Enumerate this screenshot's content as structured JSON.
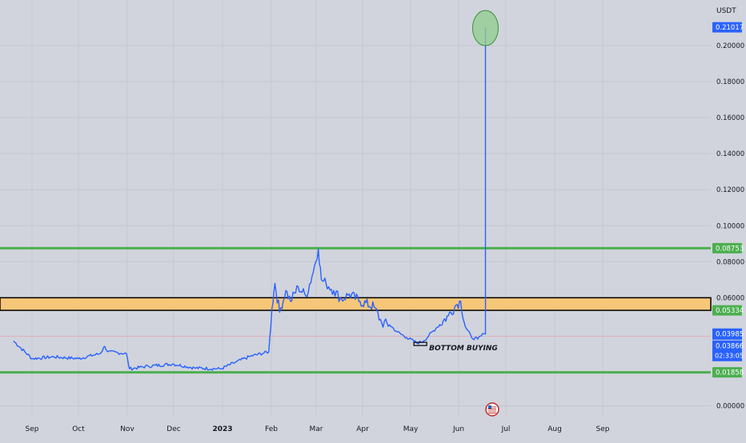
{
  "chart_data": {
    "type": "line",
    "currency": "USDT",
    "title": "",
    "xlabel": "",
    "ylabel": "",
    "grid": true,
    "legend": "none",
    "ylim": [
      -0.003,
      0.2245
    ],
    "x_tick_labels": [
      "Sep",
      "Oct",
      "Nov",
      "Dec",
      "2023",
      "Feb",
      "Mar",
      "Apr",
      "May",
      "Jun",
      "Jul",
      "Aug",
      "Sep"
    ],
    "y_tick_labels": [
      "0.20000",
      "0.18000",
      "0.16000",
      "0.14000",
      "0.12000",
      "0.10000",
      "0.08000",
      "0.06000",
      "0.00000"
    ],
    "y_ticks": [
      0.2,
      0.18,
      0.16,
      0.14,
      0.12,
      0.1,
      0.08,
      0.06,
      0.0
    ],
    "series": [
      {
        "color": "#2962ff",
        "x": [
          "2022-08-20",
          "2022-09-01",
          "2022-09-15",
          "2022-10-01",
          "2022-10-15",
          "2022-10-18",
          "2022-10-20",
          "2022-11-01",
          "2022-11-03",
          "2022-11-15",
          "2022-12-01",
          "2022-12-15",
          "2023-01-01",
          "2023-01-10",
          "2023-01-20",
          "2023-02-01",
          "2023-02-03",
          "2023-02-05",
          "2023-02-08",
          "2023-02-12",
          "2023-02-15",
          "2023-02-20",
          "2023-02-25",
          "2023-03-01",
          "2023-03-05",
          "2023-03-07",
          "2023-03-10",
          "2023-03-15",
          "2023-03-20",
          "2023-03-25",
          "2023-04-01",
          "2023-04-10",
          "2023-04-15",
          "2023-04-20",
          "2023-04-25",
          "2023-05-01",
          "2023-05-08",
          "2023-05-12",
          "2023-05-20",
          "2023-05-28",
          "2023-06-02",
          "2023-06-05",
          "2023-06-08",
          "2023-06-12",
          "2023-06-16",
          "2023-06-20",
          "2023-06-21"
        ],
        "y": [
          0.036,
          0.0262,
          0.0272,
          0.0262,
          0.029,
          0.033,
          0.03,
          0.029,
          0.0205,
          0.022,
          0.0232,
          0.021,
          0.0205,
          0.024,
          0.0275,
          0.03,
          0.054,
          0.068,
          0.052,
          0.064,
          0.058,
          0.066,
          0.061,
          0.072,
          0.087,
          0.07,
          0.068,
          0.064,
          0.059,
          0.062,
          0.058,
          0.055,
          0.046,
          0.045,
          0.041,
          0.038,
          0.0348,
          0.036,
          0.043,
          0.05,
          0.056,
          0.058,
          0.044,
          0.038,
          0.037,
          0.04,
          0.21017
        ]
      }
    ],
    "horizontal_levels": [
      {
        "value": 0.08753,
        "label": "0.08753",
        "color": "#4caf50"
      },
      {
        "value": 0.01858,
        "label": "0.01858",
        "color": "#4caf50"
      }
    ],
    "zone": {
      "from": 0.053,
      "to": 0.06,
      "label": "0.05334",
      "fill": "#f7c779",
      "border": "#000000"
    },
    "price_tags": [
      {
        "value": 0.21017,
        "label": "0.21017",
        "color": "#2962ff"
      },
      {
        "value": 0.03985,
        "label": "0.03985",
        "color": "#2962ff"
      },
      {
        "value": 0.03866,
        "label": "0.03866",
        "color": "#2962ff"
      }
    ],
    "countdown": "02:33:05",
    "annotations": [
      {
        "type": "text",
        "text": "BOTTOM BUYING",
        "date": "2023-05-12",
        "value": 0.0348
      },
      {
        "type": "ellipse",
        "date": "2023-06-21",
        "value": 0.21017,
        "color": "#8fce8f"
      }
    ]
  }
}
